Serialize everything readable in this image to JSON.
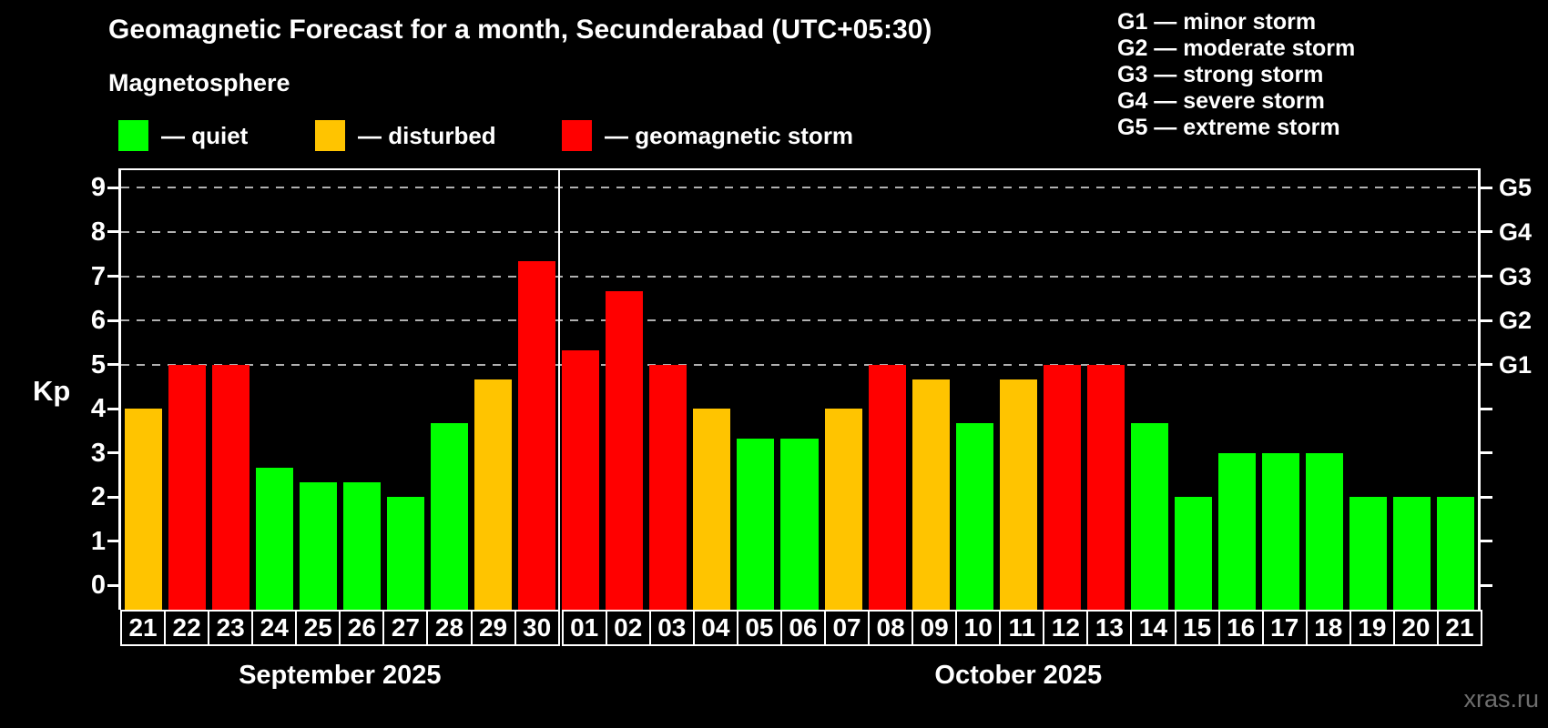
{
  "title": "Geomagnetic Forecast for a month, Secunderabad (UTC+05:30)",
  "subtitle": "Magnetosphere",
  "legend": {
    "items": [
      {
        "label": "— quiet",
        "level": "quiet"
      },
      {
        "label": "— disturbed",
        "level": "disturbed"
      },
      {
        "label": "— geomagnetic storm",
        "level": "storm"
      }
    ]
  },
  "g_legend": [
    "G1 — minor storm",
    "G2 — moderate storm",
    "G3 — strong storm",
    "G4 — severe storm",
    "G5 — extreme storm"
  ],
  "watermark": "xras.ru",
  "level_colors": {
    "quiet": "#00ff00",
    "disturbed": "#ffc400",
    "storm": "#ff0000"
  },
  "chart_data": {
    "type": "bar",
    "title": "Geomagnetic Forecast for a month, Secunderabad (UTC+05:30)",
    "xlabel": "",
    "ylabel": "Kp",
    "ylim": [
      0,
      9
    ],
    "yticks": [
      0,
      1,
      2,
      3,
      4,
      5,
      6,
      7,
      8,
      9
    ],
    "grid_kp": [
      5,
      6,
      7,
      8,
      9
    ],
    "grid": "dashed-horizontal-on-storm-levels-only",
    "legend_position": "top-left-and-top-right",
    "right_axis": [
      {
        "kp": 5,
        "label": "G1"
      },
      {
        "kp": 6,
        "label": "G2"
      },
      {
        "kp": 7,
        "label": "G3"
      },
      {
        "kp": 8,
        "label": "G4"
      },
      {
        "kp": 9,
        "label": "G5"
      }
    ],
    "months": [
      {
        "label": "September 2025",
        "days": 10
      },
      {
        "label": "October 2025",
        "days": 21
      }
    ],
    "bars": [
      {
        "day": "21",
        "kp": 4.0,
        "level": "disturbed"
      },
      {
        "day": "22",
        "kp": 5.0,
        "level": "storm"
      },
      {
        "day": "23",
        "kp": 5.0,
        "level": "storm"
      },
      {
        "day": "24",
        "kp": 2.67,
        "level": "quiet"
      },
      {
        "day": "25",
        "kp": 2.33,
        "level": "quiet"
      },
      {
        "day": "26",
        "kp": 2.33,
        "level": "quiet"
      },
      {
        "day": "27",
        "kp": 2.0,
        "level": "quiet"
      },
      {
        "day": "28",
        "kp": 3.67,
        "level": "quiet"
      },
      {
        "day": "29",
        "kp": 4.67,
        "level": "disturbed"
      },
      {
        "day": "30",
        "kp": 7.33,
        "level": "storm"
      },
      {
        "day": "01",
        "kp": 5.33,
        "level": "storm"
      },
      {
        "day": "02",
        "kp": 6.67,
        "level": "storm"
      },
      {
        "day": "03",
        "kp": 5.0,
        "level": "storm"
      },
      {
        "day": "04",
        "kp": 4.0,
        "level": "disturbed"
      },
      {
        "day": "05",
        "kp": 3.33,
        "level": "quiet"
      },
      {
        "day": "06",
        "kp": 3.33,
        "level": "quiet"
      },
      {
        "day": "07",
        "kp": 4.0,
        "level": "disturbed"
      },
      {
        "day": "08",
        "kp": 5.0,
        "level": "storm"
      },
      {
        "day": "09",
        "kp": 4.67,
        "level": "disturbed"
      },
      {
        "day": "10",
        "kp": 3.67,
        "level": "quiet"
      },
      {
        "day": "11",
        "kp": 4.67,
        "level": "disturbed"
      },
      {
        "day": "12",
        "kp": 5.0,
        "level": "storm"
      },
      {
        "day": "13",
        "kp": 5.0,
        "level": "storm"
      },
      {
        "day": "14",
        "kp": 3.67,
        "level": "quiet"
      },
      {
        "day": "15",
        "kp": 2.0,
        "level": "quiet"
      },
      {
        "day": "16",
        "kp": 3.0,
        "level": "quiet"
      },
      {
        "day": "17",
        "kp": 3.0,
        "level": "quiet"
      },
      {
        "day": "18",
        "kp": 3.0,
        "level": "quiet"
      },
      {
        "day": "19",
        "kp": 2.0,
        "level": "quiet"
      },
      {
        "day": "20",
        "kp": 2.0,
        "level": "quiet"
      },
      {
        "day": "21",
        "kp": 2.0,
        "level": "quiet"
      }
    ]
  }
}
